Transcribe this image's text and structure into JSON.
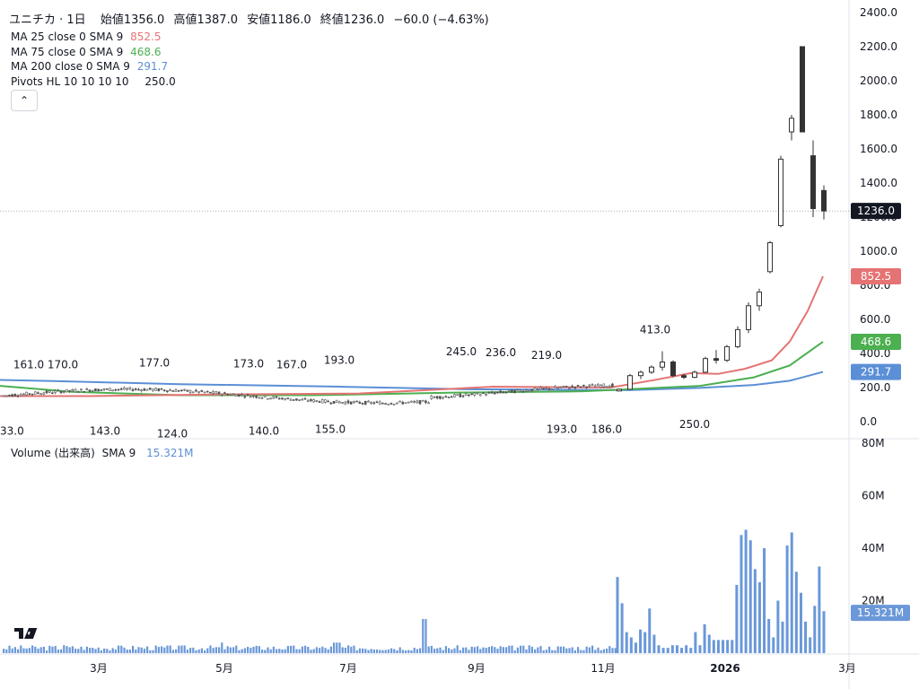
{
  "header": {
    "symbol": "ユニチカ · 1日",
    "open_label": "始値",
    "open": "1356.0",
    "high_label": "高値",
    "high": "1387.0",
    "low_label": "安値",
    "low": "1186.0",
    "close_label": "終値",
    "close": "1236.0",
    "change": "−60.0 (−4.63%)"
  },
  "indicators": {
    "ma25": {
      "label": "MA 25 close 0 SMA 9",
      "value": "852.5",
      "color": "#e57373"
    },
    "ma75": {
      "label": "MA 75 close 0 SMA 9",
      "value": "468.6",
      "color": "#4caf50"
    },
    "ma200": {
      "label": "MA 200 close 0 SMA 9",
      "value": "291.7",
      "color": "#5b8fd6"
    },
    "pivots": {
      "label": "Pivots HL 10 10 10 10",
      "value": "250.0"
    }
  },
  "volume_legend": {
    "label": "Volume (出来高)",
    "sma": "SMA 9",
    "value": "15.321M",
    "color": "#6a98d8"
  },
  "price_axis": {
    "ticks": [
      "2400.0",
      "2200.0",
      "2000.0",
      "1800.0",
      "1600.0",
      "1400.0",
      "1200.0",
      "1000.0",
      "800.0",
      "600.0",
      "400.0",
      "200.0",
      "0.0"
    ],
    "current": "1236.0"
  },
  "volume_axis": {
    "ticks": [
      "80M",
      "60M",
      "40M",
      "20M"
    ]
  },
  "time_axis": {
    "labels": [
      "3月",
      "5月",
      "7月",
      "9月",
      "11月",
      "2026",
      "3月"
    ]
  },
  "chart_data": {
    "type": "candlestick",
    "title": "ユニチカ · 1日",
    "ylim": [
      0,
      2400
    ],
    "volume_ylim": [
      0,
      80
    ],
    "pivot_labels": [
      {
        "text": "33.0",
        "x": "start",
        "pos": "low"
      },
      {
        "text": "161.0",
        "pos": "high"
      },
      {
        "text": "170.0",
        "pos": "high"
      },
      {
        "text": "143.0",
        "pos": "low"
      },
      {
        "text": "177.0",
        "pos": "high"
      },
      {
        "text": "124.0",
        "pos": "low"
      },
      {
        "text": "173.0",
        "pos": "high"
      },
      {
        "text": "140.0",
        "pos": "low"
      },
      {
        "text": "167.0",
        "pos": "high"
      },
      {
        "text": "155.0",
        "pos": "low"
      },
      {
        "text": "193.0",
        "pos": "high"
      },
      {
        "text": "245.0",
        "pos": "high"
      },
      {
        "text": "236.0",
        "pos": "high"
      },
      {
        "text": "219.0",
        "pos": "high"
      },
      {
        "text": "193.0",
        "pos": "low"
      },
      {
        "text": "186.0",
        "pos": "low"
      },
      {
        "text": "413.0",
        "pos": "high"
      },
      {
        "text": "250.0",
        "pos": "low"
      }
    ],
    "candles_recent": [
      {
        "o": 180,
        "h": 195,
        "l": 178,
        "c": 190
      },
      {
        "o": 190,
        "h": 280,
        "l": 188,
        "c": 270
      },
      {
        "o": 270,
        "h": 300,
        "l": 250,
        "c": 290
      },
      {
        "o": 290,
        "h": 330,
        "l": 280,
        "c": 320
      },
      {
        "o": 320,
        "h": 413,
        "l": 300,
        "c": 350
      },
      {
        "o": 350,
        "h": 360,
        "l": 260,
        "c": 270
      },
      {
        "o": 270,
        "h": 280,
        "l": 250,
        "c": 260
      },
      {
        "o": 260,
        "h": 300,
        "l": 255,
        "c": 290
      },
      {
        "o": 290,
        "h": 380,
        "l": 285,
        "c": 370
      },
      {
        "o": 370,
        "h": 420,
        "l": 340,
        "c": 360
      },
      {
        "o": 360,
        "h": 450,
        "l": 350,
        "c": 440
      },
      {
        "o": 440,
        "h": 560,
        "l": 430,
        "c": 540
      },
      {
        "o": 540,
        "h": 700,
        "l": 520,
        "c": 680
      },
      {
        "o": 680,
        "h": 780,
        "l": 650,
        "c": 760
      },
      {
        "o": 880,
        "h": 1060,
        "l": 870,
        "c": 1050
      },
      {
        "o": 1150,
        "h": 1560,
        "l": 1140,
        "c": 1540
      },
      {
        "o": 1700,
        "h": 1800,
        "l": 1650,
        "c": 1780
      },
      {
        "o": 2200,
        "h": 2200,
        "l": 1700,
        "c": 1700
      },
      {
        "o": 1560,
        "h": 1650,
        "l": 1200,
        "c": 1250
      },
      {
        "o": 1356,
        "h": 1387,
        "l": 1186,
        "c": 1236
      }
    ],
    "series": [
      {
        "name": "MA 25 close 0 SMA 9",
        "last": 852.5
      },
      {
        "name": "MA 75 close 0 SMA 9",
        "last": 468.6
      },
      {
        "name": "MA 200 close 0 SMA 9",
        "last": 291.7
      }
    ],
    "volume_last": 15.321
  }
}
